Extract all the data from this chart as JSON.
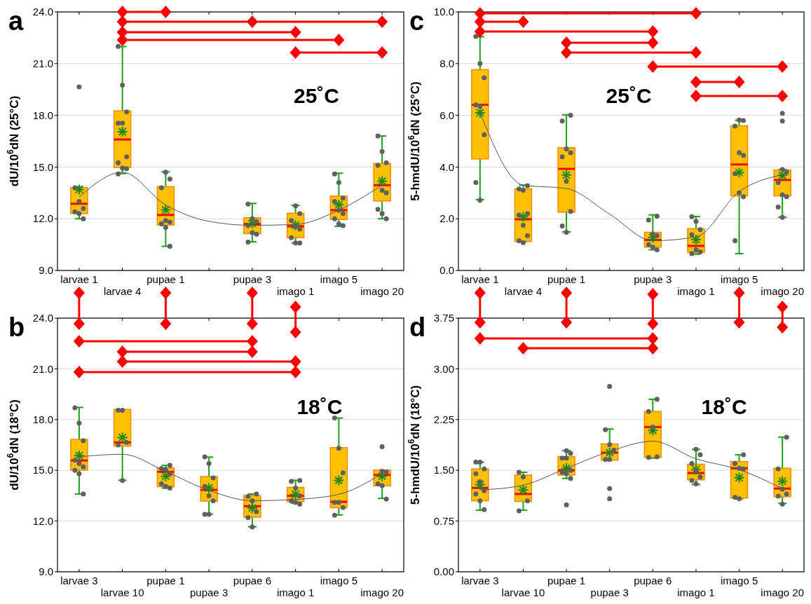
{
  "chart_data": [
    {
      "type": "box",
      "title": "a",
      "ylabel": "dU/10$^{6}$dN (25°C)",
      "annotations": [
        "25˚C"
      ],
      "categories": [
        "larvae 1",
        "larvae 4",
        "pupae 1",
        null,
        "pupae 3",
        "imago 1",
        "imago 5",
        "imago 20"
      ],
      "ylim": [
        9,
        24
      ],
      "yticks": [
        {
          "value": 9,
          "label": "9.0"
        },
        {
          "value": 12,
          "label": "12.0"
        },
        {
          "value": 15,
          "label": "15.0"
        },
        {
          "value": 18,
          "label": "18.0"
        },
        {
          "value": 21,
          "label": "21.0"
        },
        {
          "value": 24,
          "label": "24.0"
        }
      ],
      "grid": "y",
      "series": [
        {
          "type": "box",
          "color": "#ffc000",
          "boxes": [
            {
              "low": 12.0,
              "q1": 12.34,
              "median": 12.87,
              "q3": 13.77,
              "high": 13.85,
              "mean": 13.7,
              "outliers": [
                19.65
              ]
            },
            {
              "low": 14.62,
              "q1": 15.02,
              "median": 16.6,
              "q3": 18.22,
              "high": 21.99,
              "mean": 17.05
            },
            {
              "low": 10.4,
              "q1": 11.67,
              "median": 12.22,
              "q3": 13.82,
              "high": 14.72,
              "mean": 12.52
            },
            null,
            {
              "low": 10.66,
              "q1": 11.18,
              "median": 11.7,
              "q3": 12.02,
              "high": 12.89,
              "mean": 11.73
            },
            {
              "low": 10.6,
              "q1": 10.94,
              "median": 11.56,
              "q3": 12.28,
              "high": 12.78,
              "mean": 11.62
            },
            {
              "low": 11.56,
              "q1": 12.0,
              "median": 12.5,
              "q3": 13.28,
              "high": 14.64,
              "mean": 12.81
            },
            {
              "low": 12.0,
              "q1": 13.07,
              "median": 13.95,
              "q3": 15.17,
              "high": 16.8,
              "mean": 14.18
            }
          ]
        },
        {
          "type": "scatter",
          "color": "#606060",
          "marker": "circle",
          "x": [
            "larvae 1",
            "larvae 1",
            "larvae 1",
            "larvae 1",
            "larvae 1",
            "larvae 1",
            "larvae 4",
            "larvae 4",
            "larvae 4",
            "larvae 4",
            "larvae 4",
            "larvae 4",
            "larvae 4",
            "larvae 4",
            "larvae 4",
            "larvae 4",
            "pupae 1",
            "pupae 1",
            "pupae 1",
            "pupae 1",
            "pupae 1",
            "pupae 1",
            "pupae 1",
            "pupae 1",
            "pupae 3",
            "pupae 3",
            "pupae 3",
            "pupae 3",
            "pupae 3",
            "pupae 3",
            "pupae 3",
            "imago 1",
            "imago 1",
            "imago 1",
            "imago 1",
            "imago 1",
            "imago 1",
            "imago 1",
            "imago 1",
            "imago 5",
            "imago 5",
            "imago 5",
            "imago 5",
            "imago 5",
            "imago 5",
            "imago 5",
            "imago 5",
            "imago 5",
            "imago 20",
            "imago 20",
            "imago 20",
            "imago 20",
            "imago 20",
            "imago 20",
            "imago 20",
            "imago 20",
            "imago 20"
          ],
          "values": [
            13.8,
            13.0,
            12.6,
            12.4,
            12.3,
            12.0,
            22.0,
            19.75,
            18.2,
            17.55,
            17.55,
            15.6,
            15.25,
            14.95,
            14.9,
            14.6,
            14.7,
            14.3,
            13.8,
            11.9,
            11.8,
            11.7,
            11.5,
            10.4,
            12.85,
            12.0,
            11.85,
            11.6,
            11.2,
            11.1,
            10.65,
            12.75,
            12.3,
            11.9,
            11.55,
            11.4,
            10.9,
            10.6,
            10.6,
            14.6,
            14.1,
            13.2,
            13.0,
            12.5,
            12.3,
            12.0,
            11.7,
            11.6,
            16.8,
            15.9,
            15.25,
            15.1,
            13.65,
            13.5,
            12.55,
            12.3,
            12.0
          ]
        },
        {
          "type": "line",
          "color": "#555555",
          "values": [
            13.25,
            14.7,
            12.8,
            11.85,
            11.62,
            11.67,
            12.5,
            13.95
          ]
        }
      ]
    },
    {
      "type": "box",
      "title": "c",
      "ylabel": "5-hmdU/10$^{6}$dN (25°C)",
      "annotations": [
        "25˚C"
      ],
      "categories": [
        "larvae 1",
        "larvae 4",
        "pupae 1",
        null,
        "pupae 3",
        "imago 1",
        "imago 5",
        "imago 20"
      ],
      "ylim": [
        0,
        10
      ],
      "yticks": [
        {
          "value": 0,
          "label": "0.0"
        },
        {
          "value": 2,
          "label": "2.0"
        },
        {
          "value": 4,
          "label": "4.0"
        },
        {
          "value": 6,
          "label": "6.0"
        },
        {
          "value": 8,
          "label": "8.0"
        },
        {
          "value": 10,
          "label": "10.0"
        }
      ],
      "grid": "y",
      "series": [
        {
          "type": "box",
          "color": "#ffc000",
          "boxes": [
            {
              "low": 2.74,
              "q1": 4.34,
              "median": 6.41,
              "q3": 7.74,
              "high": 9.04,
              "mean": 6.1
            },
            {
              "low": 1.12,
              "q1": 1.15,
              "median": 1.98,
              "q3": 3.13,
              "high": 3.3,
              "mean": 2.07
            },
            {
              "low": 1.49,
              "q1": 2.28,
              "median": 3.93,
              "q3": 4.72,
              "high": 6.02,
              "mean": 3.69
            },
            null,
            {
              "low": 0.8,
              "q1": 0.93,
              "median": 1.18,
              "q3": 1.45,
              "high": 2.15,
              "mean": 1.28
            },
            {
              "low": 0.63,
              "q1": 0.73,
              "median": 0.95,
              "q3": 1.59,
              "high": 2.09,
              "mean": 1.19
            },
            {
              "low": 0.65,
              "q1": 2.91,
              "median": 4.1,
              "q3": 5.57,
              "high": 5.81,
              "mean": 3.79
            },
            {
              "low": 2.06,
              "q1": 2.91,
              "median": 3.5,
              "q3": 3.86,
              "high": 3.91,
              "mean": 3.68,
              "outliers": [
                6.08,
                5.78
              ]
            }
          ]
        },
        {
          "type": "scatter",
          "color": "#606060",
          "marker": "circle",
          "x": [
            "larvae 1",
            "larvae 1",
            "larvae 1",
            "larvae 1",
            "larvae 1",
            "larvae 1",
            "larvae 1",
            "larvae 1",
            "larvae 4",
            "larvae 4",
            "larvae 4",
            "larvae 4",
            "larvae 4",
            "larvae 4",
            "larvae 4",
            "larvae 4",
            "larvae 4",
            "pupae 1",
            "pupae 1",
            "pupae 1",
            "pupae 1",
            "pupae 1",
            "pupae 1",
            "pupae 1",
            "pupae 1",
            "pupae 1",
            "pupae 3",
            "pupae 3",
            "pupae 3",
            "pupae 3",
            "pupae 3",
            "pupae 3",
            "pupae 3",
            "imago 1",
            "imago 1",
            "imago 1",
            "imago 1",
            "imago 1",
            "imago 1",
            "imago 1",
            "imago 5",
            "imago 5",
            "imago 5",
            "imago 5",
            "imago 5",
            "imago 5",
            "imago 5",
            "imago 5",
            "imago 5",
            "imago 20",
            "imago 20",
            "imago 20",
            "imago 20",
            "imago 20",
            "imago 20",
            "imago 20"
          ],
          "values": [
            9.05,
            8.0,
            7.45,
            6.4,
            6.35,
            5.25,
            3.4,
            2.72,
            3.28,
            3.15,
            3.1,
            2.2,
            2.15,
            1.75,
            1.35,
            1.15,
            1.08,
            6.0,
            5.78,
            4.7,
            4.55,
            4.4,
            3.45,
            2.28,
            1.72,
            1.48,
            2.1,
            1.95,
            1.4,
            1.35,
            1.0,
            0.9,
            0.8,
            2.08,
            1.9,
            1.58,
            1.38,
            0.8,
            0.72,
            0.65,
            5.82,
            5.8,
            5.58,
            4.55,
            4.45,
            3.75,
            3.0,
            2.85,
            1.15,
            3.9,
            3.8,
            3.4,
            2.93,
            2.85,
            2.45,
            2.05
          ]
        },
        {
          "type": "line",
          "color": "#555555",
          "values": [
            6.1,
            3.3,
            3.17,
            2.18,
            1.15,
            1.3,
            3.05,
            3.7
          ]
        }
      ]
    },
    {
      "type": "box",
      "title": "b",
      "ylabel": "dU/10$^{6}$dN (18°C)",
      "annotations": [
        "18˚C"
      ],
      "categories": [
        "larvae 3",
        "larvae 10",
        "pupae 1",
        "pupae 3",
        "pupae 6",
        "imago 1",
        "imago 5",
        "imago 20"
      ],
      "ylim": [
        9,
        24
      ],
      "yticks": [
        {
          "value": 9,
          "label": "9.0"
        },
        {
          "value": 12,
          "label": "12.0"
        },
        {
          "value": 15,
          "label": "15.0"
        },
        {
          "value": 18,
          "label": "18.0"
        },
        {
          "value": 21,
          "label": "21.0"
        },
        {
          "value": 24,
          "label": "24.0"
        }
      ],
      "grid": "y",
      "series": [
        {
          "type": "box",
          "color": "#ffc000",
          "boxes": [
            {
              "low": 13.6,
              "q1": 15.05,
              "median": 15.58,
              "q3": 16.78,
              "high": 18.72,
              "mean": 15.87
            },
            {
              "low": 14.41,
              "q1": 16.47,
              "median": 16.65,
              "q3": 18.56,
              "high": 18.56,
              "mean": 16.94
            },
            {
              "low": 13.95,
              "q1": 14.07,
              "median": 14.91,
              "q3": 15.1,
              "high": 15.29,
              "mean": 14.65
            },
            {
              "low": 12.41,
              "q1": 13.22,
              "median": 13.84,
              "q3": 14.59,
              "high": 15.78,
              "mean": 13.95
            },
            {
              "low": 11.66,
              "q1": 12.27,
              "median": 12.88,
              "q3": 13.46,
              "high": 13.6,
              "mean": 12.77
            },
            {
              "low": 13.05,
              "q1": 13.19,
              "median": 13.49,
              "q3": 13.95,
              "high": 14.41,
              "mean": 13.58
            },
            {
              "low": 12.36,
              "q1": 12.83,
              "median": 13.14,
              "q3": 16.3,
              "high": 18.09,
              "mean": 14.41
            },
            {
              "low": 13.34,
              "q1": 14.12,
              "median": 14.73,
              "q3": 14.97,
              "high": 15.0,
              "mean": 14.65,
              "outliers": [
                16.4
              ]
            }
          ]
        },
        {
          "type": "scatter",
          "color": "#606060",
          "marker": "circle",
          "x": [
            "larvae 3",
            "larvae 3",
            "larvae 3",
            "larvae 3",
            "larvae 3",
            "larvae 3",
            "larvae 3",
            "larvae 3",
            "larvae 3",
            "larvae 10",
            "larvae 10",
            "larvae 10",
            "larvae 10",
            "larvae 10",
            "pupae 1",
            "pupae 1",
            "pupae 1",
            "pupae 1",
            "pupae 1",
            "pupae 1",
            "pupae 1",
            "pupae 3",
            "pupae 3",
            "pupae 3",
            "pupae 3",
            "pupae 3",
            "pupae 3",
            "pupae 3",
            "pupae 3",
            "pupae 6",
            "pupae 6",
            "pupae 6",
            "pupae 6",
            "pupae 6",
            "pupae 6",
            "imago 1",
            "imago 1",
            "imago 1",
            "imago 1",
            "imago 1",
            "imago 1",
            "imago 1",
            "imago 5",
            "imago 5",
            "imago 5",
            "imago 5",
            "imago 5",
            "imago 5",
            "imago 5",
            "imago 20",
            "imago 20",
            "imago 20",
            "imago 20",
            "imago 20"
          ],
          "values": [
            18.7,
            17.8,
            16.75,
            15.6,
            15.4,
            15.2,
            15.0,
            14.8,
            13.6,
            18.55,
            18.55,
            16.65,
            16.5,
            14.4,
            15.3,
            15.1,
            15.05,
            14.8,
            14.2,
            14.05,
            13.95,
            15.8,
            15.4,
            14.55,
            14.05,
            13.5,
            13.2,
            12.4,
            12.4,
            13.6,
            13.45,
            13.2,
            12.55,
            12.2,
            11.65,
            14.4,
            14.35,
            13.95,
            13.5,
            13.2,
            13.1,
            13.0,
            18.1,
            16.3,
            14.85,
            13.1,
            13.1,
            12.8,
            12.35,
            14.95,
            14.9,
            14.2,
            14.1,
            13.3
          ]
        },
        {
          "type": "line",
          "color": "#555555",
          "values": [
            15.8,
            15.95,
            14.93,
            13.81,
            13.2,
            13.28,
            13.58,
            14.8
          ]
        }
      ]
    },
    {
      "type": "box",
      "title": "d",
      "ylabel": "5-hmdU/10$^{6}$dN (18°C)",
      "annotations": [
        "18˚C"
      ],
      "categories": [
        "larvae 3",
        "larvae 10",
        "pupae 1",
        "pupae 3",
        "pupae 6",
        "imago 1",
        "imago 5",
        "imago 20"
      ],
      "ylim": [
        0,
        3.75
      ],
      "yticks": [
        {
          "value": 0,
          "label": "0.00"
        },
        {
          "value": 0.75,
          "label": "0.75"
        },
        {
          "value": 1.5,
          "label": "1.50"
        },
        {
          "value": 2.25,
          "label": "2.25"
        },
        {
          "value": 3,
          "label": "3.00"
        },
        {
          "value": 3.75,
          "label": "3.75"
        }
      ],
      "grid": "y",
      "series": [
        {
          "type": "box",
          "color": "#ffc000",
          "boxes": [
            {
              "low": 0.91,
              "q1": 1.06,
              "median": 1.24,
              "q3": 1.51,
              "high": 1.62,
              "mean": 1.29
            },
            {
              "low": 0.91,
              "q1": 1.05,
              "median": 1.15,
              "q3": 1.42,
              "high": 1.47,
              "mean": 1.21
            },
            {
              "low": 1.38,
              "q1": 1.44,
              "median": 1.5,
              "q3": 1.69,
              "high": 1.79,
              "mean": 1.53,
              "outliers": [
                0.99
              ]
            },
            {
              "low": 1.66,
              "q1": 1.66,
              "median": 1.76,
              "q3": 1.88,
              "high": 2.11,
              "mean": 1.76,
              "outliers": [
                2.74,
                1.23,
                1.08
              ]
            },
            {
              "low": 1.68,
              "q1": 1.7,
              "median": 2.14,
              "q3": 2.36,
              "high": 2.55,
              "mean": 2.09
            },
            {
              "low": 1.29,
              "q1": 1.37,
              "median": 1.46,
              "q3": 1.58,
              "high": 1.81,
              "mean": 1.51
            },
            {
              "low": 1.08,
              "q1": 1.1,
              "median": 1.53,
              "q3": 1.62,
              "high": 1.73,
              "mean": 1.39
            },
            {
              "low": 1.01,
              "q1": 1.12,
              "median": 1.23,
              "q3": 1.52,
              "high": 1.99,
              "mean": 1.34
            }
          ]
        },
        {
          "type": "scatter",
          "color": "#606060",
          "marker": "circle",
          "x": [
            "larvae 3",
            "larvae 3",
            "larvae 3",
            "larvae 3",
            "larvae 3",
            "larvae 3",
            "larvae 3",
            "larvae 3",
            "larvae 3",
            "larvae 10",
            "larvae 10",
            "larvae 10",
            "larvae 10",
            "pupae 1",
            "pupae 1",
            "pupae 1",
            "pupae 1",
            "pupae 1",
            "pupae 1",
            "pupae 1",
            "pupae 1",
            "pupae 3",
            "pupae 3",
            "pupae 3",
            "pupae 3",
            "pupae 3",
            "pupae 6",
            "pupae 6",
            "pupae 6",
            "pupae 6",
            "pupae 6",
            "imago 1",
            "imago 1",
            "imago 1",
            "imago 1",
            "imago 1",
            "imago 1",
            "imago 1",
            "imago 5",
            "imago 5",
            "imago 5",
            "imago 5",
            "imago 5",
            "imago 5",
            "imago 20",
            "imago 20",
            "imago 20",
            "imago 20",
            "imago 20",
            "imago 20"
          ],
          "values": [
            1.62,
            1.62,
            1.52,
            1.45,
            1.33,
            1.2,
            1.15,
            1.05,
            0.92,
            1.47,
            1.4,
            1.05,
            0.9,
            1.79,
            1.75,
            1.68,
            1.68,
            1.5,
            1.47,
            1.45,
            1.38,
            2.1,
            1.88,
            1.8,
            1.66,
            1.66,
            2.55,
            2.37,
            2.14,
            1.7,
            1.69,
            1.81,
            1.73,
            1.6,
            1.5,
            1.4,
            1.35,
            1.3,
            1.73,
            1.6,
            1.53,
            1.52,
            1.1,
            1.08,
            1.99,
            1.52,
            1.22,
            1.15,
            1.12,
            1.0
          ]
        },
        {
          "type": "line",
          "color": "#555555",
          "values": [
            1.21,
            1.28,
            1.53,
            1.78,
            1.93,
            1.67,
            1.51,
            1.23
          ]
        }
      ]
    }
  ]
}
